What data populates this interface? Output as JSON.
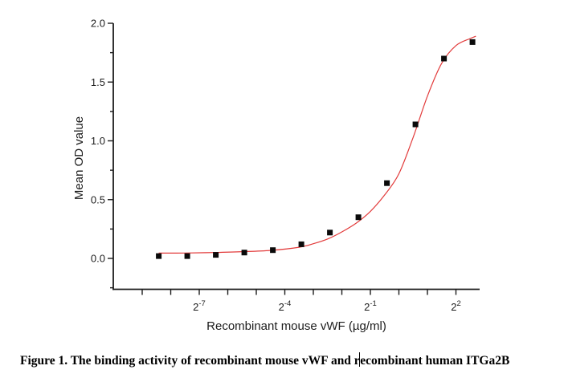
{
  "figure": {
    "caption": {
      "text_full": "Figure 1. The binding activity of recombinant mouse vWF and recombinant human ITGa2B",
      "part_before_cursor": "Figure 1. The binding activity of recombinant mouse vWF and r",
      "part_after_cursor": "ecombinant human ITGa2B"
    }
  },
  "chart_data": {
    "type": "scatter",
    "title": "",
    "xlabel": "Recombinant mouse vWF (µg/ml)",
    "ylabel": "Mean OD value",
    "x_scale": "log2",
    "xlim_log2": [
      -10.0,
      2.87
    ],
    "ylim": [
      -0.27,
      2.0
    ],
    "grid": false,
    "legend": "none",
    "axis_color": "#1c1c1c",
    "x_tick_base": "2",
    "x_ticks": [
      {
        "log2": -9,
        "exp": null
      },
      {
        "log2": -8,
        "exp": null
      },
      {
        "log2": -7,
        "exp": "-7"
      },
      {
        "log2": -6,
        "exp": null
      },
      {
        "log2": -5,
        "exp": null
      },
      {
        "log2": -4,
        "exp": "-4"
      },
      {
        "log2": -3,
        "exp": null
      },
      {
        "log2": -2,
        "exp": null
      },
      {
        "log2": -1,
        "exp": "-1"
      },
      {
        "log2": 0,
        "exp": null
      },
      {
        "log2": 1,
        "exp": null
      },
      {
        "log2": 2,
        "exp": "2"
      }
    ],
    "y_ticks_major": [
      {
        "value": 0.0,
        "label": "0.0"
      },
      {
        "value": 0.5,
        "label": "0.5"
      },
      {
        "value": 1.0,
        "label": "1.0"
      },
      {
        "value": 1.5,
        "label": "1.5"
      },
      {
        "value": 2.0,
        "label": "2.0"
      }
    ],
    "y_ticks_minor": [
      -0.25,
      0.25,
      0.75,
      1.25,
      1.75
    ],
    "series": [
      {
        "name": "Mean OD value",
        "marker": "filled-square",
        "marker_px": 7,
        "color": "#0a0a0a",
        "x_ug_ml": [
          0.0029,
          0.0059,
          0.0117,
          0.0234,
          0.0469,
          0.0938,
          0.1875,
          0.375,
          0.75,
          1.5,
          3.0,
          6.0
        ],
        "log2_x": [
          -8.42,
          -7.42,
          -6.42,
          -5.42,
          -4.42,
          -3.42,
          -2.42,
          -1.42,
          -0.42,
          0.58,
          1.58,
          2.58
        ],
        "od": [
          0.02,
          0.02,
          0.03,
          0.05,
          0.07,
          0.12,
          0.22,
          0.35,
          0.64,
          1.14,
          1.7,
          1.84
        ]
      }
    ],
    "fit_curve": {
      "name": "sigmoidal-fit-line",
      "color": "#e23b3b",
      "log2_x": [
        -8.42,
        -7.5,
        -6.5,
        -5.5,
        -4.5,
        -3.5,
        -3.0,
        -2.5,
        -2.0,
        -1.5,
        -1.0,
        -0.5,
        0.0,
        0.5,
        1.0,
        1.5,
        2.0,
        2.5,
        2.7
      ],
      "od": [
        0.045,
        0.046,
        0.05,
        0.057,
        0.068,
        0.095,
        0.125,
        0.165,
        0.225,
        0.3,
        0.4,
        0.54,
        0.72,
        1.03,
        1.38,
        1.66,
        1.81,
        1.87,
        1.89
      ]
    }
  }
}
